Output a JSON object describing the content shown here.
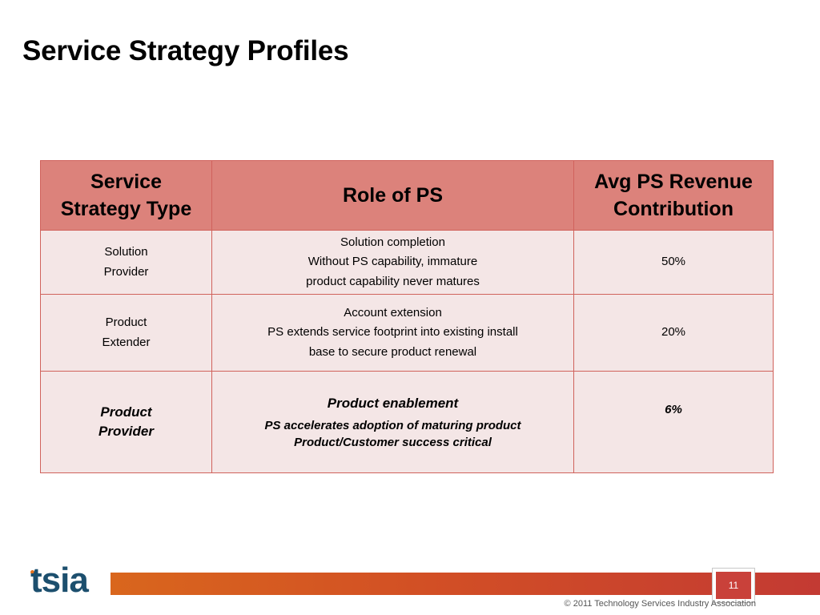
{
  "slide": {
    "title": "Service Strategy Profiles"
  },
  "table": {
    "headers": {
      "type_line1": "Service",
      "type_line2": "Strategy Type",
      "role": "Role of PS",
      "rev_line1": "Avg PS Revenue",
      "rev_line2": "Contribution"
    },
    "rows": [
      {
        "type_line1": "Solution",
        "type_line2": "Provider",
        "role_line1": "Solution completion",
        "role_line2": "Without PS capability, immature",
        "role_line3": "product capability never matures",
        "revenue": "50%"
      },
      {
        "type_line1": "Product",
        "type_line2": "Extender",
        "role_line1": "Account extension",
        "role_line2": "PS extends service footprint into existing install",
        "role_line3": "base to secure product renewal",
        "revenue": "20%"
      },
      {
        "type_line1": "Product",
        "type_line2": "Provider",
        "role_line1": "Product enablement",
        "role_line2": "PS accelerates adoption of maturing product",
        "role_line3": "Product/Customer success critical",
        "revenue": "6%"
      }
    ]
  },
  "footer": {
    "logo_text": "tsia",
    "page_number": "11",
    "copyright": "© 2011 Technology Services Industry Association",
    "colors": {
      "bar_start": "#d9661d",
      "bar_end": "#c33a33",
      "logo": "#1c4f6e",
      "header_fill": "#dc827b",
      "cell_fill": "#f4e6e6"
    }
  }
}
